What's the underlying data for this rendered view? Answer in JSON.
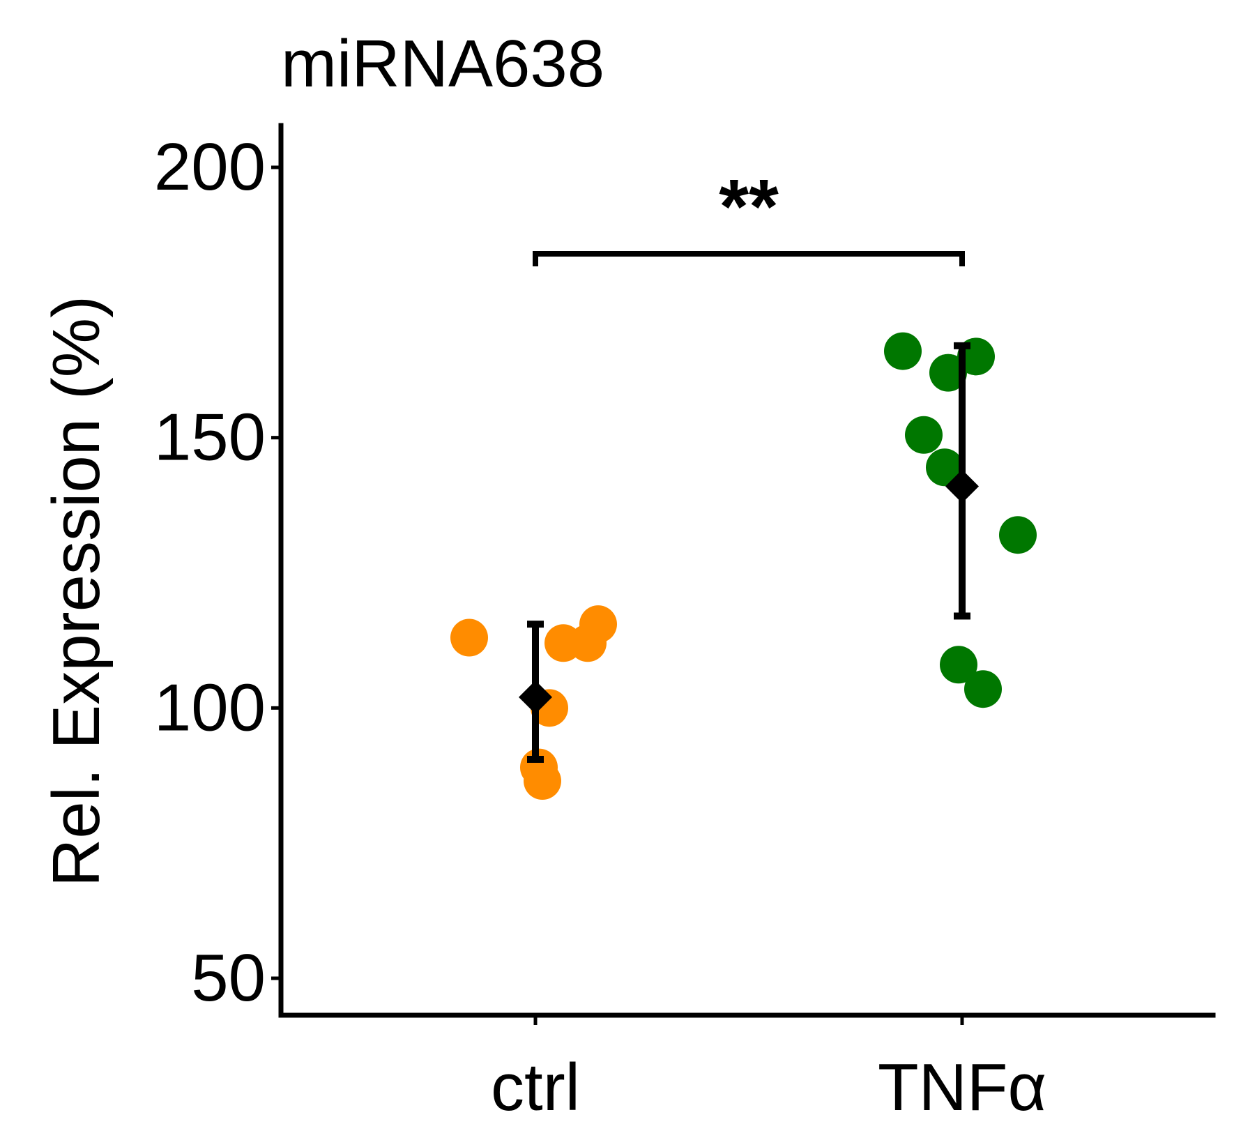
{
  "chart_data": {
    "type": "scatter",
    "title": "miRNA638",
    "xlabel": "",
    "ylabel": "Rel. Expression (%)",
    "categories": [
      "ctrl",
      "TNFα"
    ],
    "ylim": [
      45,
      208
    ],
    "yticks": [
      50,
      100,
      150,
      200
    ],
    "grid": false,
    "legend": "none",
    "series": [
      {
        "category": "ctrl",
        "color": "#FF8C00",
        "points": [
          {
            "x": "ctrl",
            "jitter": -0.19,
            "y": 113
          },
          {
            "x": "ctrl",
            "jitter": 0.04,
            "y": 100
          },
          {
            "x": "ctrl",
            "jitter": 0.01,
            "y": 89
          },
          {
            "x": "ctrl",
            "jitter": 0.02,
            "y": 86.5
          },
          {
            "x": "ctrl",
            "jitter": 0.08,
            "y": 112
          },
          {
            "x": "ctrl",
            "jitter": 0.15,
            "y": 112
          },
          {
            "x": "ctrl",
            "jitter": 0.18,
            "y": 115.5
          }
        ],
        "mean": 102,
        "error": [
          90.5,
          115.5
        ]
      },
      {
        "category": "TNFα",
        "color": "#007700",
        "points": [
          {
            "x": "TNFα",
            "jitter": -0.17,
            "y": 166
          },
          {
            "x": "TNFα",
            "jitter": -0.04,
            "y": 162
          },
          {
            "x": "TNFα",
            "jitter": 0.04,
            "y": 165
          },
          {
            "x": "TNFα",
            "jitter": -0.11,
            "y": 150.5
          },
          {
            "x": "TNFα",
            "jitter": -0.05,
            "y": 144.5
          },
          {
            "x": "TNFα",
            "jitter": 0.16,
            "y": 132
          },
          {
            "x": "TNFα",
            "jitter": -0.01,
            "y": 108
          },
          {
            "x": "TNFα",
            "jitter": 0.06,
            "y": 103.5
          }
        ],
        "mean": 141,
        "error": [
          117,
          167
        ]
      }
    ],
    "annotations": [
      {
        "type": "significance-bracket",
        "from": "ctrl",
        "to": "TNFα",
        "y": 184,
        "label": "**"
      }
    ]
  }
}
